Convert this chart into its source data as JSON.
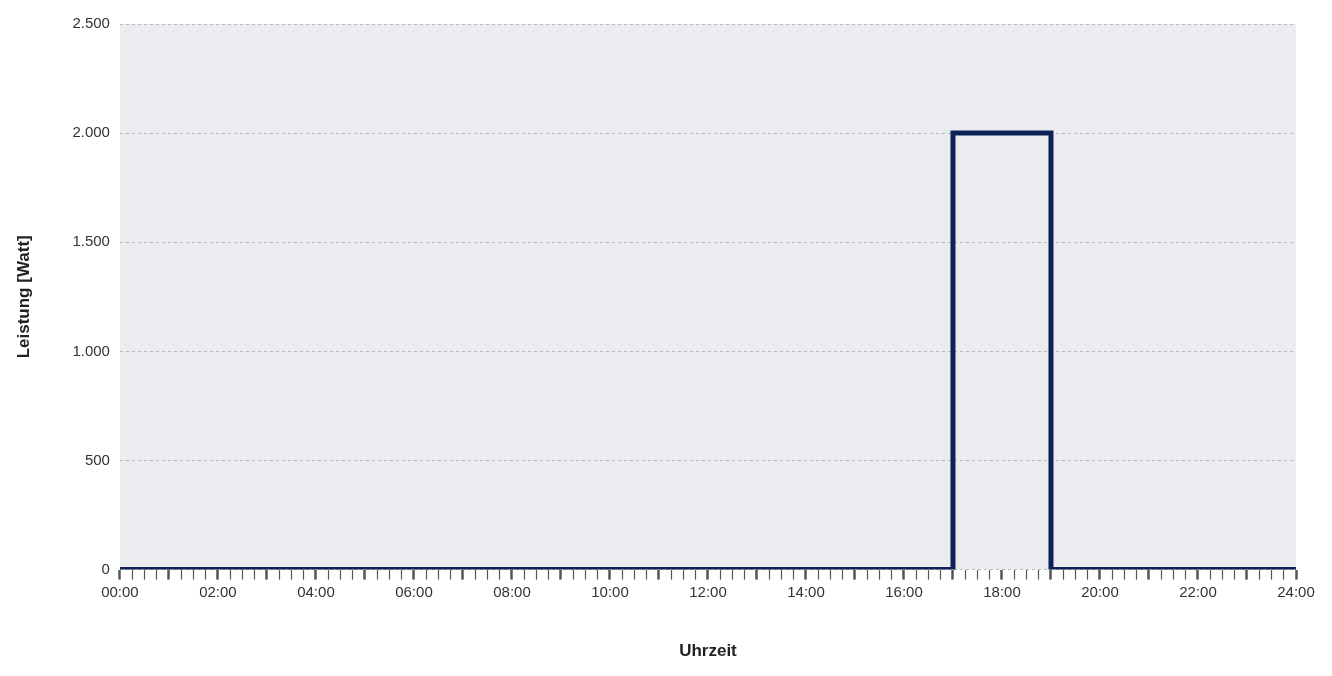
{
  "chart_data": {
    "type": "step",
    "xlabel": "Uhrzeit",
    "ylabel": "Leistung [Watt]",
    "x": [
      0,
      17,
      19,
      24
    ],
    "series": [
      {
        "color": "#0d2257",
        "values": [
          0,
          2000,
          0,
          0
        ]
      }
    ],
    "xlim": [
      0,
      24
    ],
    "xticks": [
      {
        "value": 0,
        "label": "00:00"
      },
      {
        "value": 0.25,
        "label": null
      },
      {
        "value": 0.5,
        "label": null
      },
      {
        "value": 0.75,
        "label": null
      },
      {
        "value": 1,
        "label": null
      },
      {
        "value": 1.25,
        "label": null
      },
      {
        "value": 1.5,
        "label": null
      },
      {
        "value": 1.75,
        "label": null
      },
      {
        "value": 2,
        "label": "02:00"
      },
      {
        "value": 2.25,
        "label": null
      },
      {
        "value": 2.5,
        "label": null
      },
      {
        "value": 2.75,
        "label": null
      },
      {
        "value": 3,
        "label": null
      },
      {
        "value": 3.25,
        "label": null
      },
      {
        "value": 3.5,
        "label": null
      },
      {
        "value": 3.75,
        "label": null
      },
      {
        "value": 4,
        "label": "04:00"
      },
      {
        "value": 4.25,
        "label": null
      },
      {
        "value": 4.5,
        "label": null
      },
      {
        "value": 4.75,
        "label": null
      },
      {
        "value": 5,
        "label": null
      },
      {
        "value": 5.25,
        "label": null
      },
      {
        "value": 5.5,
        "label": null
      },
      {
        "value": 5.75,
        "label": null
      },
      {
        "value": 6,
        "label": "06:00"
      },
      {
        "value": 6.25,
        "label": null
      },
      {
        "value": 6.5,
        "label": null
      },
      {
        "value": 6.75,
        "label": null
      },
      {
        "value": 7,
        "label": null
      },
      {
        "value": 7.25,
        "label": null
      },
      {
        "value": 7.5,
        "label": null
      },
      {
        "value": 7.75,
        "label": null
      },
      {
        "value": 8,
        "label": "08:00"
      },
      {
        "value": 8.25,
        "label": null
      },
      {
        "value": 8.5,
        "label": null
      },
      {
        "value": 8.75,
        "label": null
      },
      {
        "value": 9,
        "label": null
      },
      {
        "value": 9.25,
        "label": null
      },
      {
        "value": 9.5,
        "label": null
      },
      {
        "value": 9.75,
        "label": null
      },
      {
        "value": 10,
        "label": "10:00"
      },
      {
        "value": 10.25,
        "label": null
      },
      {
        "value": 10.5,
        "label": null
      },
      {
        "value": 10.75,
        "label": null
      },
      {
        "value": 11,
        "label": null
      },
      {
        "value": 11.25,
        "label": null
      },
      {
        "value": 11.5,
        "label": null
      },
      {
        "value": 11.75,
        "label": null
      },
      {
        "value": 12,
        "label": "12:00"
      },
      {
        "value": 12.25,
        "label": null
      },
      {
        "value": 12.5,
        "label": null
      },
      {
        "value": 12.75,
        "label": null
      },
      {
        "value": 13,
        "label": null
      },
      {
        "value": 13.25,
        "label": null
      },
      {
        "value": 13.5,
        "label": null
      },
      {
        "value": 13.75,
        "label": null
      },
      {
        "value": 14,
        "label": "14:00"
      },
      {
        "value": 14.25,
        "label": null
      },
      {
        "value": 14.5,
        "label": null
      },
      {
        "value": 14.75,
        "label": null
      },
      {
        "value": 15,
        "label": null
      },
      {
        "value": 15.25,
        "label": null
      },
      {
        "value": 15.5,
        "label": null
      },
      {
        "value": 15.75,
        "label": null
      },
      {
        "value": 16,
        "label": "16:00"
      },
      {
        "value": 16.25,
        "label": null
      },
      {
        "value": 16.5,
        "label": null
      },
      {
        "value": 16.75,
        "label": null
      },
      {
        "value": 17,
        "label": null
      },
      {
        "value": 17.25,
        "label": null
      },
      {
        "value": 17.5,
        "label": null
      },
      {
        "value": 17.75,
        "label": null
      },
      {
        "value": 18,
        "label": "18:00"
      },
      {
        "value": 18.25,
        "label": null
      },
      {
        "value": 18.5,
        "label": null
      },
      {
        "value": 18.75,
        "label": null
      },
      {
        "value": 19,
        "label": null
      },
      {
        "value": 19.25,
        "label": null
      },
      {
        "value": 19.5,
        "label": null
      },
      {
        "value": 19.75,
        "label": null
      },
      {
        "value": 20,
        "label": "20:00"
      },
      {
        "value": 20.25,
        "label": null
      },
      {
        "value": 20.5,
        "label": null
      },
      {
        "value": 20.75,
        "label": null
      },
      {
        "value": 21,
        "label": null
      },
      {
        "value": 21.25,
        "label": null
      },
      {
        "value": 21.5,
        "label": null
      },
      {
        "value": 21.75,
        "label": null
      },
      {
        "value": 22,
        "label": "22:00"
      },
      {
        "value": 22.25,
        "label": null
      },
      {
        "value": 22.5,
        "label": null
      },
      {
        "value": 22.75,
        "label": null
      },
      {
        "value": 23,
        "label": null
      },
      {
        "value": 23.25,
        "label": null
      },
      {
        "value": 23.5,
        "label": null
      },
      {
        "value": 23.75,
        "label": null
      },
      {
        "value": 24,
        "label": "24:00"
      }
    ],
    "ylim": [
      0,
      2500
    ],
    "yticks": [
      {
        "value": 0,
        "label": "0"
      },
      {
        "value": 500,
        "label": "500"
      },
      {
        "value": 1000,
        "label": "1.000"
      },
      {
        "value": 1500,
        "label": "1.500"
      },
      {
        "value": 2000,
        "label": "2.000"
      },
      {
        "value": 2500,
        "label": "2.500"
      }
    ],
    "grid": "y",
    "line_style": "solid"
  }
}
